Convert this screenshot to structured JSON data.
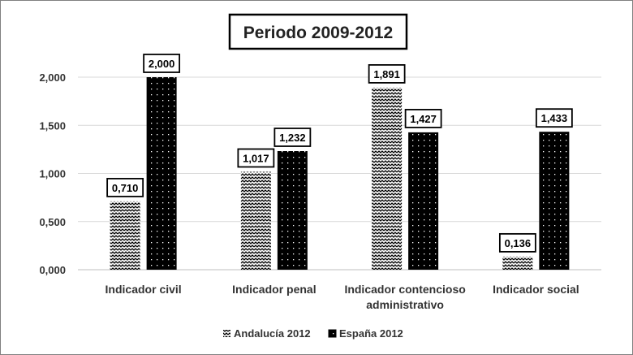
{
  "chart_data": {
    "type": "bar",
    "title": "Periodo 2009-2012",
    "xlabel": "",
    "ylabel": "",
    "categories": [
      [
        "Indicador civil"
      ],
      [
        "Indicador penal"
      ],
      [
        "Indicador contencioso",
        "administrativo"
      ],
      [
        "Indicador social"
      ]
    ],
    "series": [
      {
        "name": "Andalucía 2012",
        "values": [
          0.71,
          1.017,
          1.891,
          0.136
        ],
        "labels": [
          "0,710",
          "1,017",
          "1,891",
          "0,136"
        ],
        "pattern": "zigzag"
      },
      {
        "name": "España 2012",
        "values": [
          2.0,
          1.232,
          1.427,
          1.433
        ],
        "labels": [
          "2,000",
          "1,232",
          "1,427",
          "1,433"
        ],
        "pattern": "dots"
      }
    ],
    "ylim": [
      0,
      2.0
    ],
    "yticks": [
      {
        "value": 0,
        "label": "0,000"
      },
      {
        "value": 0.5,
        "label": "0,500"
      },
      {
        "value": 1.0,
        "label": "1,000"
      },
      {
        "value": 1.5,
        "label": "1,500"
      },
      {
        "value": 2.0,
        "label": "2,000"
      }
    ],
    "grid": true,
    "legend_position": "bottom",
    "colors": {
      "bar": "#000000",
      "grid": "#d9d9d9",
      "axis": "#bfbfbf",
      "text": "#333333"
    }
  }
}
